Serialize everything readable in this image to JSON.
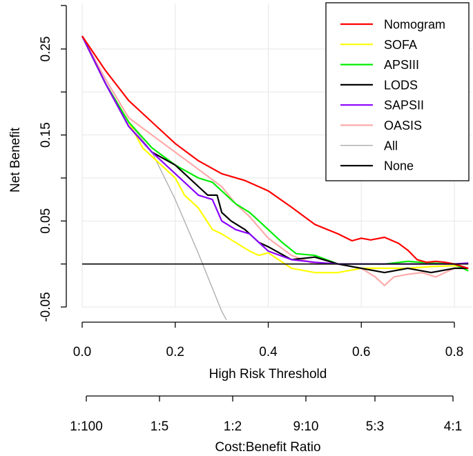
{
  "chart_data": {
    "type": "line",
    "title": "",
    "xlabel": "High Risk Threshold",
    "ylabel": "Net Benefit",
    "xlim": [
      0.0,
      0.83
    ],
    "ylim": [
      -0.05,
      0.29
    ],
    "x_ticks": [
      0.0,
      0.2,
      0.4,
      0.6,
      0.8
    ],
    "x_tick_labels": [
      "0.0",
      "0.2",
      "0.4",
      "0.6",
      "0.8"
    ],
    "y_ticks": [
      -0.05,
      0.05,
      0.15,
      0.25
    ],
    "y_tick_labels": [
      "-0.05",
      "0.05",
      "0.15",
      "0.25"
    ],
    "grid": true,
    "legend_position": "top-right",
    "secondary_axis": {
      "label": "Cost:Benefit Ratio",
      "tick_labels": [
        "1:100",
        "1:5",
        "1:2",
        "9:10",
        "5:3",
        "4:1"
      ]
    },
    "series": [
      {
        "name": "Nomogram",
        "color": "#ff0000",
        "x": [
          0.0,
          0.05,
          0.1,
          0.15,
          0.2,
          0.25,
          0.3,
          0.35,
          0.4,
          0.45,
          0.5,
          0.55,
          0.58,
          0.6,
          0.62,
          0.65,
          0.68,
          0.7,
          0.72,
          0.74,
          0.76,
          0.78,
          0.8,
          0.83
        ],
        "y": [
          0.265,
          0.225,
          0.19,
          0.165,
          0.14,
          0.12,
          0.105,
          0.097,
          0.085,
          0.066,
          0.046,
          0.035,
          0.027,
          0.03,
          0.028,
          0.031,
          0.024,
          0.016,
          0.005,
          0.002,
          0.003,
          0.002,
          0.0,
          -0.005
        ]
      },
      {
        "name": "SOFA",
        "color": "#ffff00",
        "x": [
          0.0,
          0.05,
          0.1,
          0.13,
          0.16,
          0.2,
          0.22,
          0.25,
          0.28,
          0.3,
          0.33,
          0.36,
          0.38,
          0.4,
          0.45,
          0.5,
          0.55,
          0.6,
          0.65,
          0.7,
          0.75,
          0.8,
          0.83
        ],
        "y": [
          0.265,
          0.21,
          0.165,
          0.135,
          0.12,
          0.1,
          0.08,
          0.065,
          0.04,
          0.035,
          0.025,
          0.015,
          0.01,
          0.013,
          -0.005,
          -0.01,
          -0.01,
          -0.005,
          -0.005,
          -0.005,
          -0.003,
          -0.002,
          -0.005
        ]
      },
      {
        "name": "APSIII",
        "color": "#00ee00",
        "x": [
          0.0,
          0.05,
          0.1,
          0.15,
          0.2,
          0.25,
          0.28,
          0.3,
          0.33,
          0.36,
          0.4,
          0.43,
          0.46,
          0.5,
          0.55,
          0.6,
          0.65,
          0.7,
          0.75,
          0.8,
          0.83
        ],
        "y": [
          0.265,
          0.21,
          0.165,
          0.135,
          0.115,
          0.1,
          0.095,
          0.085,
          0.07,
          0.06,
          0.04,
          0.025,
          0.012,
          0.01,
          0.0,
          0.0,
          0.0,
          0.003,
          0.001,
          0.0,
          -0.008
        ]
      },
      {
        "name": "LODS",
        "color": "#000000",
        "x": [
          0.0,
          0.05,
          0.1,
          0.15,
          0.2,
          0.25,
          0.27,
          0.29,
          0.3,
          0.32,
          0.35,
          0.38,
          0.4,
          0.45,
          0.5,
          0.55,
          0.6,
          0.65,
          0.7,
          0.75,
          0.8,
          0.83
        ],
        "y": [
          0.265,
          0.21,
          0.16,
          0.13,
          0.115,
          0.09,
          0.08,
          0.08,
          0.06,
          0.05,
          0.04,
          0.025,
          0.02,
          0.005,
          0.008,
          0.0,
          -0.005,
          -0.01,
          -0.005,
          -0.01,
          -0.005,
          -0.005
        ]
      },
      {
        "name": "SAPSII",
        "color": "#8b00ff",
        "x": [
          0.0,
          0.05,
          0.1,
          0.15,
          0.2,
          0.25,
          0.28,
          0.3,
          0.33,
          0.36,
          0.4,
          0.45,
          0.5,
          0.55,
          0.6,
          0.65,
          0.7,
          0.75,
          0.8,
          0.83
        ],
        "y": [
          0.265,
          0.21,
          0.16,
          0.13,
          0.105,
          0.08,
          0.075,
          0.05,
          0.04,
          0.035,
          0.015,
          0.005,
          0.002,
          0.0,
          0.0,
          0.0,
          0.0,
          0.0,
          0.0,
          0.001
        ]
      },
      {
        "name": "OASIS",
        "color": "#ffaaaa",
        "x": [
          0.0,
          0.05,
          0.1,
          0.15,
          0.2,
          0.25,
          0.3,
          0.33,
          0.36,
          0.4,
          0.45,
          0.5,
          0.55,
          0.6,
          0.63,
          0.65,
          0.67,
          0.7,
          0.73,
          0.76,
          0.8,
          0.83
        ],
        "y": [
          0.265,
          0.215,
          0.17,
          0.15,
          0.13,
          0.11,
          0.09,
          0.07,
          0.055,
          0.03,
          0.01,
          0.0,
          0.0,
          -0.005,
          -0.015,
          -0.025,
          -0.015,
          -0.012,
          -0.01,
          -0.015,
          -0.005,
          -0.005
        ]
      },
      {
        "name": "All",
        "color": "#aaaaaa",
        "x": [
          0.0,
          0.05,
          0.1,
          0.15,
          0.2,
          0.25,
          0.3,
          0.31
        ],
        "y": [
          0.265,
          0.21,
          0.165,
          0.13,
          0.075,
          0.012,
          -0.055,
          -0.065
        ]
      },
      {
        "name": "None",
        "color": "#000000",
        "x": [
          0.0,
          0.83
        ],
        "y": [
          0.0,
          0.0
        ]
      }
    ]
  }
}
